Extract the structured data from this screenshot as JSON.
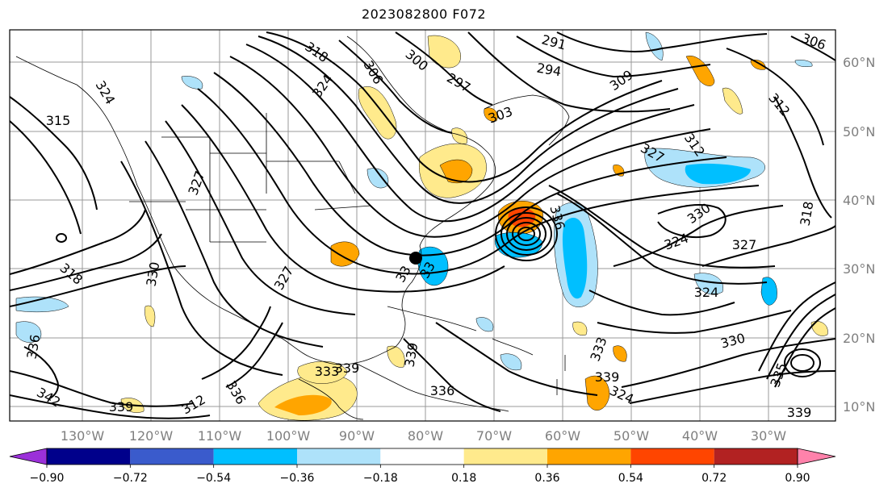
{
  "title": "2023082800 F072",
  "lon_labels": [
    "130°W",
    "120°W",
    "110°W",
    "100°W",
    "90°W",
    "80°W",
    "70°W",
    "60°W",
    "50°W",
    "40°W",
    "30°W"
  ],
  "lat_labels": [
    "60°N",
    "50°N",
    "40°N",
    "30°N",
    "20°N",
    "10°N"
  ],
  "contour_labels": [
    "306",
    "291",
    "318",
    "324",
    "306",
    "300",
    "297",
    "294",
    "309",
    "312",
    "315",
    "324",
    "303",
    "327",
    "312",
    "324",
    "327",
    "318",
    "330",
    "336",
    "324",
    "330",
    "318",
    "327",
    "336",
    "339",
    "33",
    "330",
    "339",
    "324",
    "333",
    "339",
    "342",
    "336",
    "312",
    "335",
    "339",
    "336",
    "333",
    "327",
    "339",
    "33"
  ],
  "colorbar": {
    "ticks": [
      "−0.90",
      "−0.72",
      "−0.54",
      "−0.36",
      "−0.18",
      "0.18",
      "0.36",
      "0.54",
      "0.72",
      "0.90"
    ],
    "colors": [
      "#9b30d9",
      "#00008b",
      "#3a5bcc",
      "#00bfff",
      "#aee2fa",
      "#ffffff",
      "#ffea8c",
      "#ffa500",
      "#ff4500",
      "#b22222",
      "#ff82ab"
    ]
  }
}
